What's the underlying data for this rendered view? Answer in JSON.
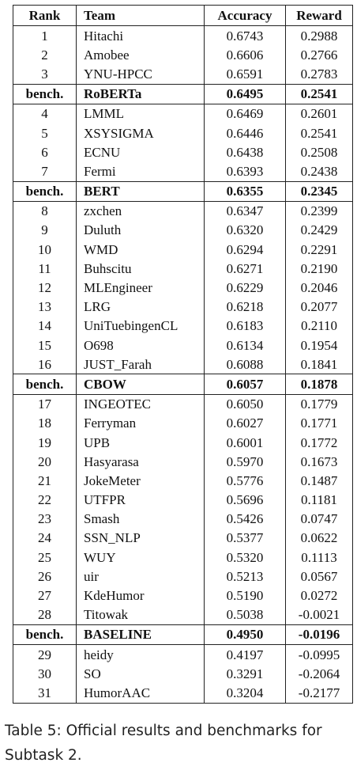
{
  "headers": [
    "Rank",
    "Team",
    "Accuracy",
    "Reward"
  ],
  "rows": [
    {
      "rank": "1",
      "team": "Hitachi",
      "accuracy": "0.6743",
      "reward": "0.2988",
      "bench": false
    },
    {
      "rank": "2",
      "team": "Amobee",
      "accuracy": "0.6606",
      "reward": "0.2766",
      "bench": false
    },
    {
      "rank": "3",
      "team": "YNU-HPCC",
      "accuracy": "0.6591",
      "reward": "0.2783",
      "bench": false
    },
    {
      "rank": "bench.",
      "team": "RoBERTa",
      "accuracy": "0.6495",
      "reward": "0.2541",
      "bench": true
    },
    {
      "rank": "4",
      "team": "LMML",
      "accuracy": "0.6469",
      "reward": "0.2601",
      "bench": false
    },
    {
      "rank": "5",
      "team": "XSYSIGMA",
      "accuracy": "0.6446",
      "reward": "0.2541",
      "bench": false
    },
    {
      "rank": "6",
      "team": "ECNU",
      "accuracy": "0.6438",
      "reward": "0.2508",
      "bench": false
    },
    {
      "rank": "7",
      "team": "Fermi",
      "accuracy": "0.6393",
      "reward": "0.2438",
      "bench": false
    },
    {
      "rank": "bench.",
      "team": "BERT",
      "accuracy": "0.6355",
      "reward": "0.2345",
      "bench": true
    },
    {
      "rank": "8",
      "team": "zxchen",
      "accuracy": "0.6347",
      "reward": "0.2399",
      "bench": false
    },
    {
      "rank": "9",
      "team": "Duluth",
      "accuracy": "0.6320",
      "reward": "0.2429",
      "bench": false
    },
    {
      "rank": "10",
      "team": "WMD",
      "accuracy": "0.6294",
      "reward": "0.2291",
      "bench": false
    },
    {
      "rank": "11",
      "team": "Buhscitu",
      "accuracy": "0.6271",
      "reward": "0.2190",
      "bench": false
    },
    {
      "rank": "12",
      "team": "MLEngineer",
      "accuracy": "0.6229",
      "reward": "0.2046",
      "bench": false
    },
    {
      "rank": "13",
      "team": "LRG",
      "accuracy": "0.6218",
      "reward": "0.2077",
      "bench": false
    },
    {
      "rank": "14",
      "team": "UniTuebingenCL",
      "accuracy": "0.6183",
      "reward": "0.2110",
      "bench": false
    },
    {
      "rank": "15",
      "team": "O698",
      "accuracy": "0.6134",
      "reward": "0.1954",
      "bench": false
    },
    {
      "rank": "16",
      "team": "JUST_Farah",
      "accuracy": "0.6088",
      "reward": "0.1841",
      "bench": false
    },
    {
      "rank": "bench.",
      "team": "CBOW",
      "accuracy": "0.6057",
      "reward": "0.1878",
      "bench": true
    },
    {
      "rank": "17",
      "team": "INGEOTEC",
      "accuracy": "0.6050",
      "reward": "0.1779",
      "bench": false
    },
    {
      "rank": "18",
      "team": "Ferryman",
      "accuracy": "0.6027",
      "reward": "0.1771",
      "bench": false
    },
    {
      "rank": "19",
      "team": "UPB",
      "accuracy": "0.6001",
      "reward": "0.1772",
      "bench": false
    },
    {
      "rank": "20",
      "team": "Hasyarasa",
      "accuracy": "0.5970",
      "reward": "0.1673",
      "bench": false
    },
    {
      "rank": "21",
      "team": "JokeMeter",
      "accuracy": "0.5776",
      "reward": "0.1487",
      "bench": false
    },
    {
      "rank": "22",
      "team": "UTFPR",
      "accuracy": "0.5696",
      "reward": "0.1181",
      "bench": false
    },
    {
      "rank": "23",
      "team": "Smash",
      "accuracy": "0.5426",
      "reward": "0.0747",
      "bench": false
    },
    {
      "rank": "24",
      "team": "SSN_NLP",
      "accuracy": "0.5377",
      "reward": "0.0622",
      "bench": false
    },
    {
      "rank": "25",
      "team": "WUY",
      "accuracy": "0.5320",
      "reward": "0.1113",
      "bench": false
    },
    {
      "rank": "26",
      "team": "uir",
      "accuracy": "0.5213",
      "reward": "0.0567",
      "bench": false
    },
    {
      "rank": "27",
      "team": "KdeHumor",
      "accuracy": "0.5190",
      "reward": "0.0272",
      "bench": false
    },
    {
      "rank": "28",
      "team": "Titowak",
      "accuracy": "0.5038",
      "reward": "-0.0021",
      "bench": false
    },
    {
      "rank": "bench.",
      "team": "BASELINE",
      "accuracy": "0.4950",
      "reward": "-0.0196",
      "bench": true
    },
    {
      "rank": "29",
      "team": "heidy",
      "accuracy": "0.4197",
      "reward": "-0.0995",
      "bench": false
    },
    {
      "rank": "30",
      "team": "SO",
      "accuracy": "0.3291",
      "reward": "-0.2064",
      "bench": false
    },
    {
      "rank": "31",
      "team": "HumorAAC",
      "accuracy": "0.3204",
      "reward": "-0.2177",
      "bench": false
    }
  ],
  "caption": "Table 5: Official results and benchmarks for Subtask 2."
}
